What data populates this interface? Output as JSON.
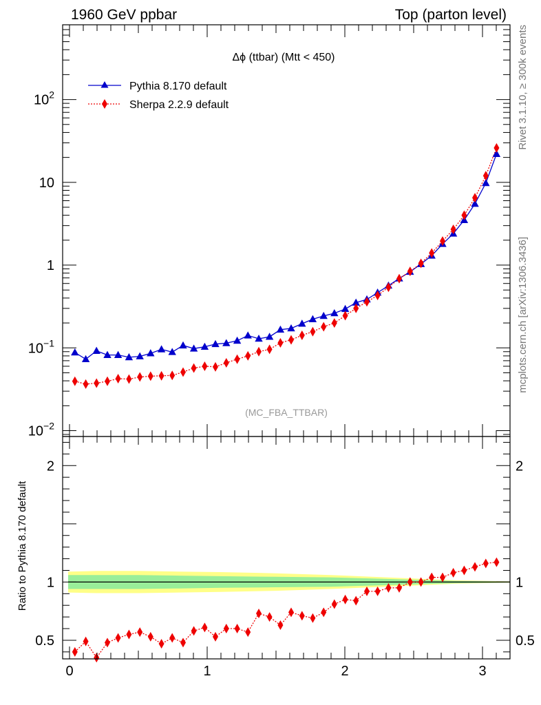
{
  "header": {
    "left": "1960 GeV ppbar",
    "right": "Top (parton level)"
  },
  "side_labels": {
    "rivet": "Rivet 3.1.10, ≥ 300k events",
    "mcplots": "mcplots.cern.ch [arXiv:1306.3436]"
  },
  "chart_data": [
    {
      "type": "line",
      "panel": "main",
      "title": "Δϕ (ttbar) (Mtt < 450)",
      "watermark": "(MC_FBA_TTBAR)",
      "yscale": "log",
      "xlim": [
        -0.05,
        3.2
      ],
      "ylim": [
        0.0085,
        800
      ],
      "y_ticks": [
        {
          "value": 0.01,
          "base": "10",
          "exp": "−2"
        },
        {
          "value": 0.1,
          "base": "10",
          "exp": "−1"
        },
        {
          "value": 1,
          "label": "1"
        },
        {
          "value": 10,
          "label": "10"
        },
        {
          "value": 100,
          "base": "10",
          "exp": "2"
        }
      ],
      "legend_position": "top-left",
      "x": [
        0.039,
        0.118,
        0.196,
        0.275,
        0.353,
        0.432,
        0.511,
        0.589,
        0.668,
        0.746,
        0.825,
        0.903,
        0.982,
        1.06,
        1.139,
        1.218,
        1.296,
        1.375,
        1.453,
        1.532,
        1.61,
        1.689,
        1.767,
        1.846,
        1.924,
        2.003,
        2.081,
        2.16,
        2.238,
        2.317,
        2.395,
        2.474,
        2.553,
        2.631,
        2.71,
        2.788,
        2.867,
        2.945,
        3.024,
        3.102
      ],
      "series": [
        {
          "name": "Pythia 8.170 default",
          "color": "#0000cc",
          "marker": "triangle",
          "linestyle": "solid",
          "values": [
            0.088,
            0.073,
            0.092,
            0.082,
            0.082,
            0.077,
            0.079,
            0.086,
            0.096,
            0.089,
            0.107,
            0.098,
            0.103,
            0.111,
            0.114,
            0.122,
            0.141,
            0.129,
            0.136,
            0.166,
            0.172,
            0.196,
            0.222,
            0.243,
            0.262,
            0.295,
            0.352,
            0.385,
            0.465,
            0.565,
            0.69,
            0.83,
            1.03,
            1.3,
            1.8,
            2.4,
            3.5,
            5.5,
            9.8,
            22.0
          ]
        },
        {
          "name": "Sherpa 2.2.9 default",
          "color": "#ee0000",
          "marker": "diamond",
          "linestyle": "dotted",
          "values": [
            0.0395,
            0.0365,
            0.0375,
            0.0395,
            0.0425,
            0.042,
            0.0445,
            0.0455,
            0.046,
            0.0465,
            0.051,
            0.057,
            0.06,
            0.059,
            0.066,
            0.073,
            0.08,
            0.09,
            0.096,
            0.115,
            0.125,
            0.142,
            0.157,
            0.18,
            0.2,
            0.245,
            0.3,
            0.36,
            0.43,
            0.54,
            0.685,
            0.84,
            1.05,
            1.4,
            1.95,
            2.7,
            4.0,
            6.5,
            12.0,
            26.0
          ]
        }
      ]
    },
    {
      "type": "line",
      "panel": "ratio",
      "ylabel": "Ratio to Pythia 8.170 default",
      "xlim": [
        -0.05,
        3.2
      ],
      "ylim": [
        0.34,
        2.25
      ],
      "x_ticks": [
        0,
        1,
        2,
        3
      ],
      "y_ticks": [
        0.5,
        1,
        2
      ],
      "reference_value": 1,
      "band_inner_color": "#99ee99",
      "band_outer_color": "#ffff88",
      "band_x": [
        -0.01,
        0.2,
        0.5,
        0.8,
        1.1,
        1.5,
        1.9,
        2.2,
        2.5,
        2.8,
        3.2
      ],
      "band_inner_halfwidth": [
        0.06,
        0.06,
        0.06,
        0.055,
        0.05,
        0.045,
        0.04,
        0.03,
        0.02,
        0.01,
        0.004
      ],
      "band_outer_halfwidth": [
        0.09,
        0.095,
        0.095,
        0.09,
        0.085,
        0.075,
        0.06,
        0.045,
        0.03,
        0.015,
        0.006
      ],
      "series": [
        {
          "name": "Sherpa 2.2.9 default",
          "color": "#ee0000",
          "marker": "diamond",
          "linestyle": "dotted",
          "x": [
            0.039,
            0.118,
            0.196,
            0.275,
            0.353,
            0.432,
            0.511,
            0.589,
            0.668,
            0.746,
            0.825,
            0.903,
            0.982,
            1.06,
            1.139,
            1.218,
            1.296,
            1.375,
            1.453,
            1.532,
            1.61,
            1.689,
            1.767,
            1.846,
            1.924,
            2.003,
            2.081,
            2.16,
            2.238,
            2.317,
            2.395,
            2.474,
            2.553,
            2.631,
            2.71,
            2.788,
            2.867,
            2.945,
            3.024,
            3.102
          ],
          "values": [
            0.4,
            0.49,
            0.35,
            0.48,
            0.52,
            0.55,
            0.57,
            0.53,
            0.47,
            0.52,
            0.48,
            0.58,
            0.61,
            0.53,
            0.6,
            0.6,
            0.57,
            0.73,
            0.7,
            0.63,
            0.74,
            0.71,
            0.69,
            0.74,
            0.81,
            0.85,
            0.84,
            0.92,
            0.92,
            0.95,
            0.95,
            1.0,
            1.0,
            1.04,
            1.04,
            1.08,
            1.1,
            1.13,
            1.16,
            1.17
          ],
          "errors": [
            0.02,
            0.02,
            0.02,
            0.02,
            0.02,
            0.02,
            0.02,
            0.02,
            0.02,
            0.02,
            0.02,
            0.02,
            0.02,
            0.02,
            0.015,
            0.015,
            0.015,
            0.015,
            0.015,
            0.015,
            0.015,
            0.015,
            0.015,
            0.015,
            0.015,
            0.012,
            0.012,
            0.012,
            0.012,
            0.012,
            0.01,
            0.01,
            0.01,
            0.01,
            0.01,
            0.01,
            0.01,
            0.01,
            0.01,
            0.01
          ]
        }
      ]
    }
  ]
}
